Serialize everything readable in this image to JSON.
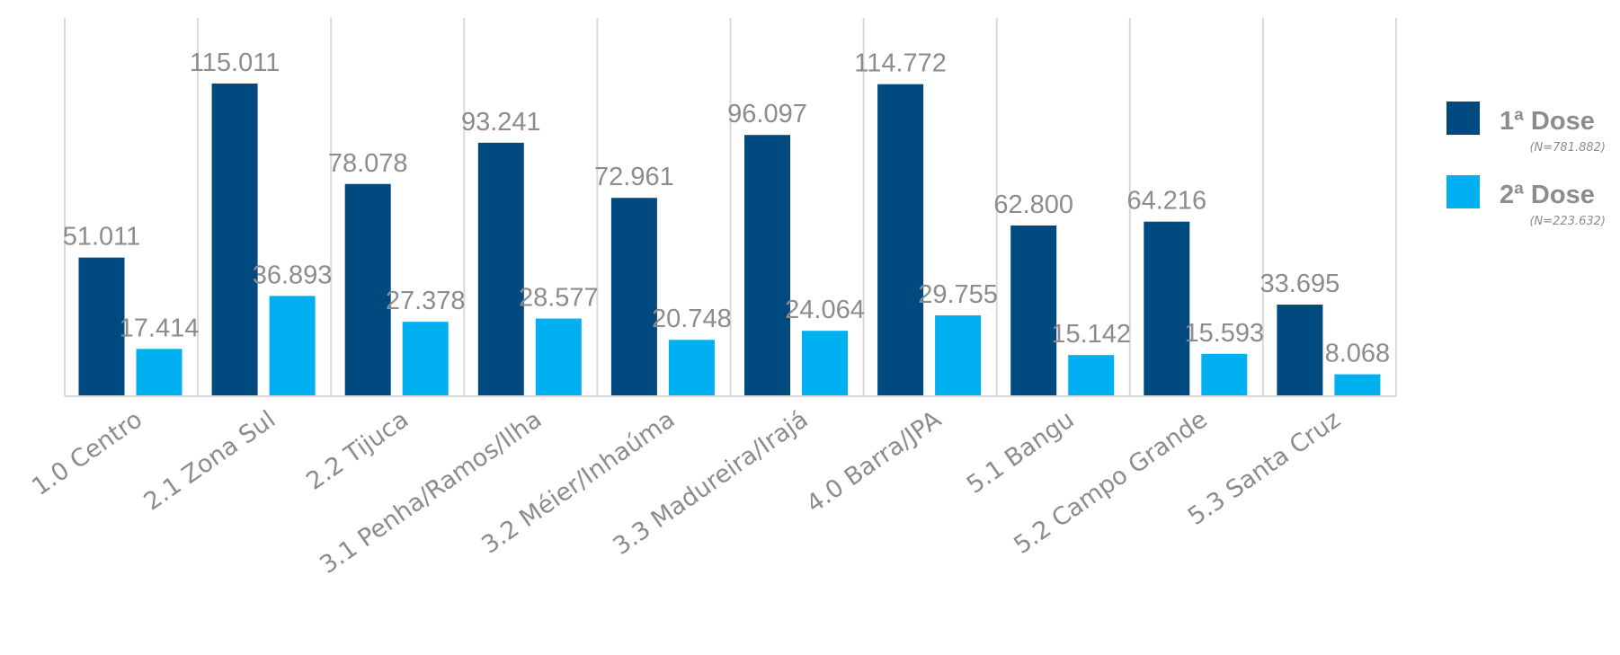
{
  "chart_data": {
    "type": "bar",
    "categories": [
      "1.0 Centro",
      "2.1 Zona Sul",
      "2.2 Tijuca",
      "3.1 Penha/Ramos/Ilha",
      "3.2 Méier/Inhaúma",
      "3.3 Madureira/Irajá",
      "4.0 Barra/JPA",
      "5.1 Bangu",
      "5.2 Campo Grande",
      "5.3 Santa Cruz"
    ],
    "series": [
      {
        "name": "1ª Dose",
        "note": "(N=781.882)",
        "color": "#004A7F",
        "values": [
          51011,
          115011,
          78078,
          93241,
          72961,
          96097,
          114772,
          62800,
          64216,
          33695
        ],
        "labels": [
          "51.011",
          "115.011",
          "78.078",
          "93.241",
          "72.961",
          "96.097",
          "114.772",
          "62.800",
          "64.216",
          "33.695"
        ]
      },
      {
        "name": "2ª Dose",
        "note": "(N=223.632)",
        "color": "#00B0F0",
        "values": [
          17414,
          36893,
          27378,
          28577,
          20748,
          24064,
          29755,
          15142,
          15593,
          8068
        ],
        "labels": [
          "17.414",
          "36.893",
          "27.378",
          "28.577",
          "20.748",
          "24.064",
          "29.755",
          "15.142",
          "15.593",
          "8.068"
        ]
      }
    ],
    "title": "",
    "xlabel": "",
    "ylabel": "",
    "ylim": [
      0,
      140000
    ],
    "grid": "vertical",
    "legend": "right"
  }
}
